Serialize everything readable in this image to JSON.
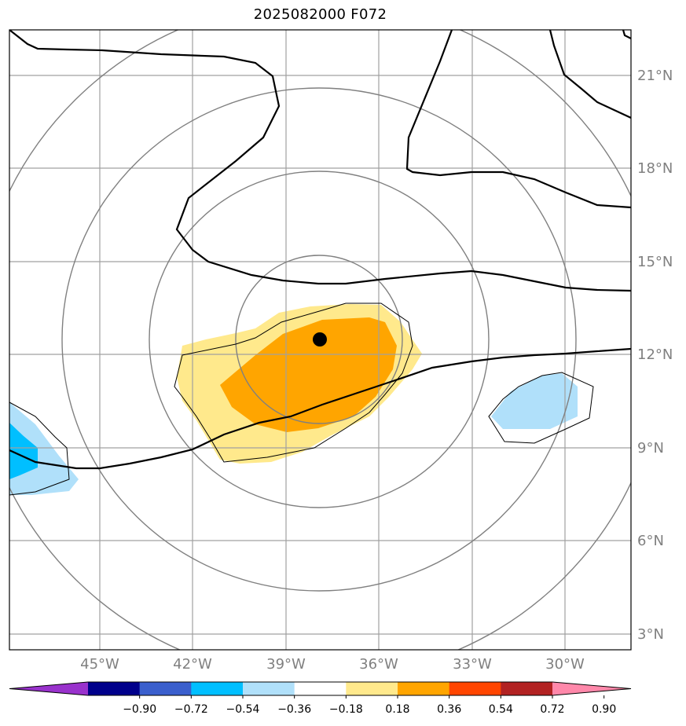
{
  "title": "2025082000 F072",
  "lat_labels": [
    "3°N",
    "6°N",
    "9°N",
    "12°N",
    "15°N",
    "18°N",
    "21°N"
  ],
  "lon_labels": [
    "45°W",
    "42°W",
    "39°W",
    "36°W",
    "33°W",
    "30°W"
  ],
  "colorbar": {
    "labels": [
      "−0.90",
      "−0.72",
      "−0.54",
      "−0.36",
      "−0.18",
      "0.18",
      "0.36",
      "0.54",
      "0.72",
      "0.90"
    ],
    "colors": [
      "#9932cc",
      "#00008b",
      "#3a5fcd",
      "#00bfff",
      "#b0e0fa",
      "#ffffff",
      "#ffe98c",
      "#ffa500",
      "#ff4500",
      "#b22222",
      "#ff88aa"
    ]
  },
  "colors": {
    "grid": "#a0a0a0",
    "range_rings": "#808080",
    "contour": "#000000",
    "fill_light_yellow": "#ffe98c",
    "fill_orange": "#ffa500",
    "fill_light_blue": "#b0e0fa",
    "fill_cyan": "#00bfff"
  },
  "storm_center": {
    "lon": -37.9,
    "lat": 12.5
  }
}
